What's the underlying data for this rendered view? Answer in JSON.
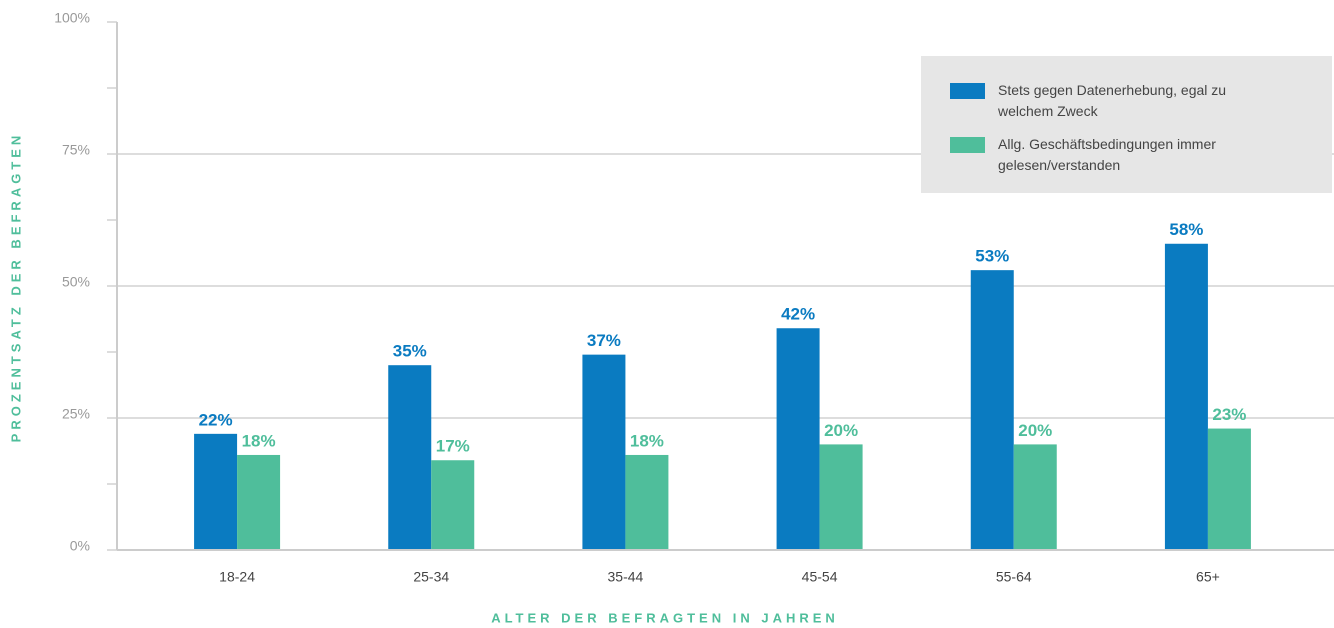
{
  "chart_data": {
    "type": "bar",
    "categories": [
      "18-24",
      "25-34",
      "35-44",
      "45-54",
      "55-64",
      "65+"
    ],
    "series": [
      {
        "name": "Stets gegen Datenerhebung, egal zu welchem Zweck",
        "color": "#0a7bc1",
        "values": [
          22,
          35,
          37,
          42,
          53,
          58
        ],
        "value_labels": [
          "22%",
          "35%",
          "37%",
          "42%",
          "53%",
          "58%"
        ]
      },
      {
        "name": "Allg. Geschäftsbedingungen immer gelesen/verstanden",
        "color": "#4fbe9b",
        "values": [
          18,
          17,
          18,
          20,
          20,
          23
        ],
        "value_labels": [
          "18%",
          "17%",
          "18%",
          "20%",
          "20%",
          "23%"
        ]
      }
    ],
    "ylim": [
      0,
      100
    ],
    "yticks": [
      {
        "value": 0,
        "label": "0%"
      },
      {
        "value": 25,
        "label": "25%"
      },
      {
        "value": 50,
        "label": "50%"
      },
      {
        "value": 75,
        "label": "75%"
      },
      {
        "value": 100,
        "label": "100%"
      }
    ],
    "minor_yticks": [
      12.5,
      37.5,
      62.5,
      87.5
    ],
    "grid": true,
    "legend": "top-right",
    "xlabel": "ALTER DER BEFRAGTEN IN JAHREN",
    "ylabel": "PROZENTSATZ DER BEFRAGTEN"
  }
}
